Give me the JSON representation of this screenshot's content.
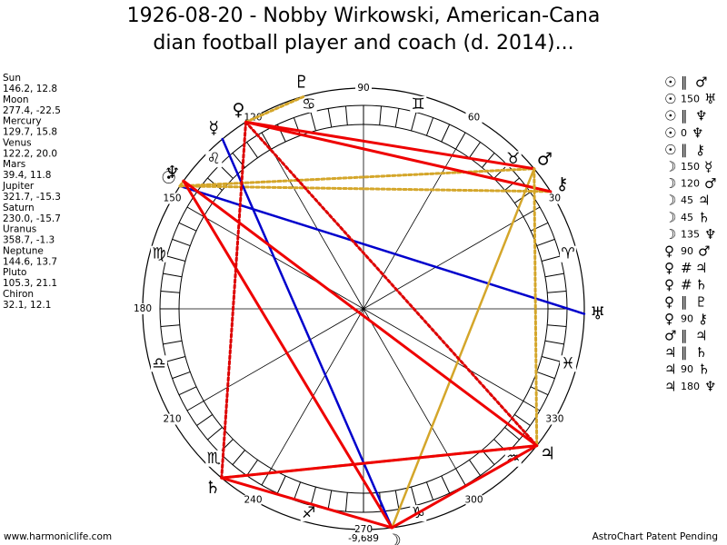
{
  "title_lines": [
    "1926-08-20 - Nobby Wirkowski, American-Cana",
    "dian football player and coach (d. 2014)..."
  ],
  "planets": [
    {
      "name": "Sun",
      "position": "146.2, 12.8",
      "glyph": "☉"
    },
    {
      "name": "Moon",
      "position": "277.4, -22.5",
      "glyph": "☽"
    },
    {
      "name": "Mercury",
      "position": "129.7, 15.8",
      "glyph": "☿"
    },
    {
      "name": "Venus",
      "position": "122.2, 20.0",
      "glyph": "♀"
    },
    {
      "name": "Mars",
      "position": "39.4, 11.8",
      "glyph": "♂"
    },
    {
      "name": "Jupiter",
      "position": "321.7, -15.3",
      "glyph": "♃"
    },
    {
      "name": "Saturn",
      "position": "230.0, -15.7",
      "glyph": "♄"
    },
    {
      "name": "Uranus",
      "position": "358.7, -1.3",
      "glyph": "♅"
    },
    {
      "name": "Neptune",
      "position": "144.6, 13.7",
      "glyph": "♆"
    },
    {
      "name": "Pluto",
      "position": "105.3, 21.1",
      "glyph": "♇"
    },
    {
      "name": "Chiron",
      "position": "32.1, 12.1",
      "glyph": "⚷"
    }
  ],
  "aspects": [
    {
      "from": "☉",
      "aspect": "∥",
      "to": "♂"
    },
    {
      "from": "☉",
      "aspect": "150",
      "to": "♅"
    },
    {
      "from": "☉",
      "aspect": "∥",
      "to": "♆"
    },
    {
      "from": "☉",
      "aspect": "0",
      "to": "♆"
    },
    {
      "from": "☉",
      "aspect": "∥",
      "to": "⚷"
    },
    {
      "from": "☽",
      "aspect": "150",
      "to": "☿"
    },
    {
      "from": "☽",
      "aspect": "120",
      "to": "♂"
    },
    {
      "from": "☽",
      "aspect": "45",
      "to": "♃"
    },
    {
      "from": "☽",
      "aspect": "45",
      "to": "♄"
    },
    {
      "from": "☽",
      "aspect": "135",
      "to": "♆"
    },
    {
      "from": "♀",
      "aspect": "90",
      "to": "♂"
    },
    {
      "from": "♀",
      "aspect": "#",
      "to": "♃"
    },
    {
      "from": "♀",
      "aspect": "#",
      "to": "♄"
    },
    {
      "from": "♀",
      "aspect": "∥",
      "to": "♇"
    },
    {
      "from": "♀",
      "aspect": "90",
      "to": "⚷"
    },
    {
      "from": "♂",
      "aspect": "∥",
      "to": "♃"
    },
    {
      "from": "♃",
      "aspect": "∥",
      "to": "♄"
    },
    {
      "from": "♃",
      "aspect": "90",
      "to": "♄"
    },
    {
      "from": "♃",
      "aspect": "180",
      "to": "♆"
    }
  ],
  "zodiac": [
    "♈",
    "♉",
    "♊",
    "♋",
    "♌",
    "♍",
    "♎",
    "♏",
    "♐",
    "♑",
    "♒",
    "♓"
  ],
  "degree_labels": [
    "30",
    "60",
    "90",
    "120",
    "150",
    "180",
    "210",
    "240",
    "270",
    "300",
    "330"
  ],
  "bottom_value": "-9,689",
  "footer_left": "www.harmoniclife.com",
  "footer_right": "AstroChart Patent Pending"
}
